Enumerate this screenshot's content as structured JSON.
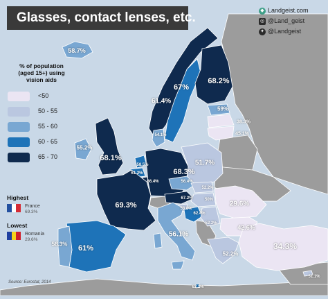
{
  "title": "Glasses, contact lenses, etc.",
  "branding": {
    "website": "Landgeist.com",
    "instagram": "@Land_geist",
    "twitter": "@Landgeist"
  },
  "legend": {
    "title_lines": [
      "% of population",
      "(aged 15+) using",
      "vision aids"
    ],
    "items": [
      {
        "label": "<50",
        "color": "#ebe5f3"
      },
      {
        "label": "50 - 55",
        "color": "#bac7e0"
      },
      {
        "label": "55 - 60",
        "color": "#79a7d2"
      },
      {
        "label": "60 - 65",
        "color": "#1e73b8"
      },
      {
        "label": "65 - 70",
        "color": "#0f2a4e"
      }
    ]
  },
  "extremes": {
    "highest": {
      "heading": "Highest",
      "country": "France",
      "value": "69.3%",
      "flag": [
        "#2350a0",
        "#ffffff",
        "#d52b35"
      ]
    },
    "lowest": {
      "heading": "Lowest",
      "country": "Romania",
      "value": "29.6%",
      "flag": [
        "#1f3fa0",
        "#f5d21a",
        "#cf1f2c"
      ]
    }
  },
  "source": "Source: Eurostat, 2014",
  "map": {
    "colors": {
      "sea": "#c9d8e7",
      "non_data": "#9c9c9c",
      "border": "#ffffff"
    },
    "value_labels": [
      {
        "country": "Iceland",
        "value": "58.7%"
      },
      {
        "country": "Norway",
        "value": "67%"
      },
      {
        "country": "Sweden",
        "value": "61.4%"
      },
      {
        "country": "Finland",
        "value": "68.2%"
      },
      {
        "country": "Estonia",
        "value": "59%"
      },
      {
        "country": "Latvia",
        "value": "38.3%"
      },
      {
        "country": "Lithuania",
        "value": "45.1%"
      },
      {
        "country": "Denmark",
        "value": "54.1%"
      },
      {
        "country": "Ireland",
        "value": "55.2%"
      },
      {
        "country": "United Kingdom",
        "value": "68.1%"
      },
      {
        "country": "Netherlands",
        "value": "58.5%"
      },
      {
        "country": "Belgium",
        "value": "61.2%"
      },
      {
        "country": "Luxembourg",
        "value": "66.4%"
      },
      {
        "country": "Germany",
        "value": "68.3%"
      },
      {
        "country": "Poland",
        "value": "51.7%"
      },
      {
        "country": "Czechia",
        "value": "56.4%"
      },
      {
        "country": "Slovakia",
        "value": "52.2%"
      },
      {
        "country": "Austria",
        "value": "67.2%"
      },
      {
        "country": "Hungary",
        "value": "50%"
      },
      {
        "country": "Slovenia",
        "value": "53.8%"
      },
      {
        "country": "Croatia",
        "value": "62.4%"
      },
      {
        "country": "France",
        "value": "69.3%"
      },
      {
        "country": "Romania",
        "value": "29.6%"
      },
      {
        "country": "Bulgaria",
        "value": "42.6%"
      },
      {
        "country": "Serbia",
        "value": "52.2%"
      },
      {
        "country": "Italy",
        "value": "56.1%"
      },
      {
        "country": "Spain",
        "value": "61%"
      },
      {
        "country": "Portugal",
        "value": "58.3%"
      },
      {
        "country": "Greece",
        "value": "52.2%"
      },
      {
        "country": "Turkey",
        "value": "34.3%"
      },
      {
        "country": "Malta",
        "value": "62.2%"
      },
      {
        "country": "Cyprus",
        "value": "51.1%"
      }
    ]
  }
}
